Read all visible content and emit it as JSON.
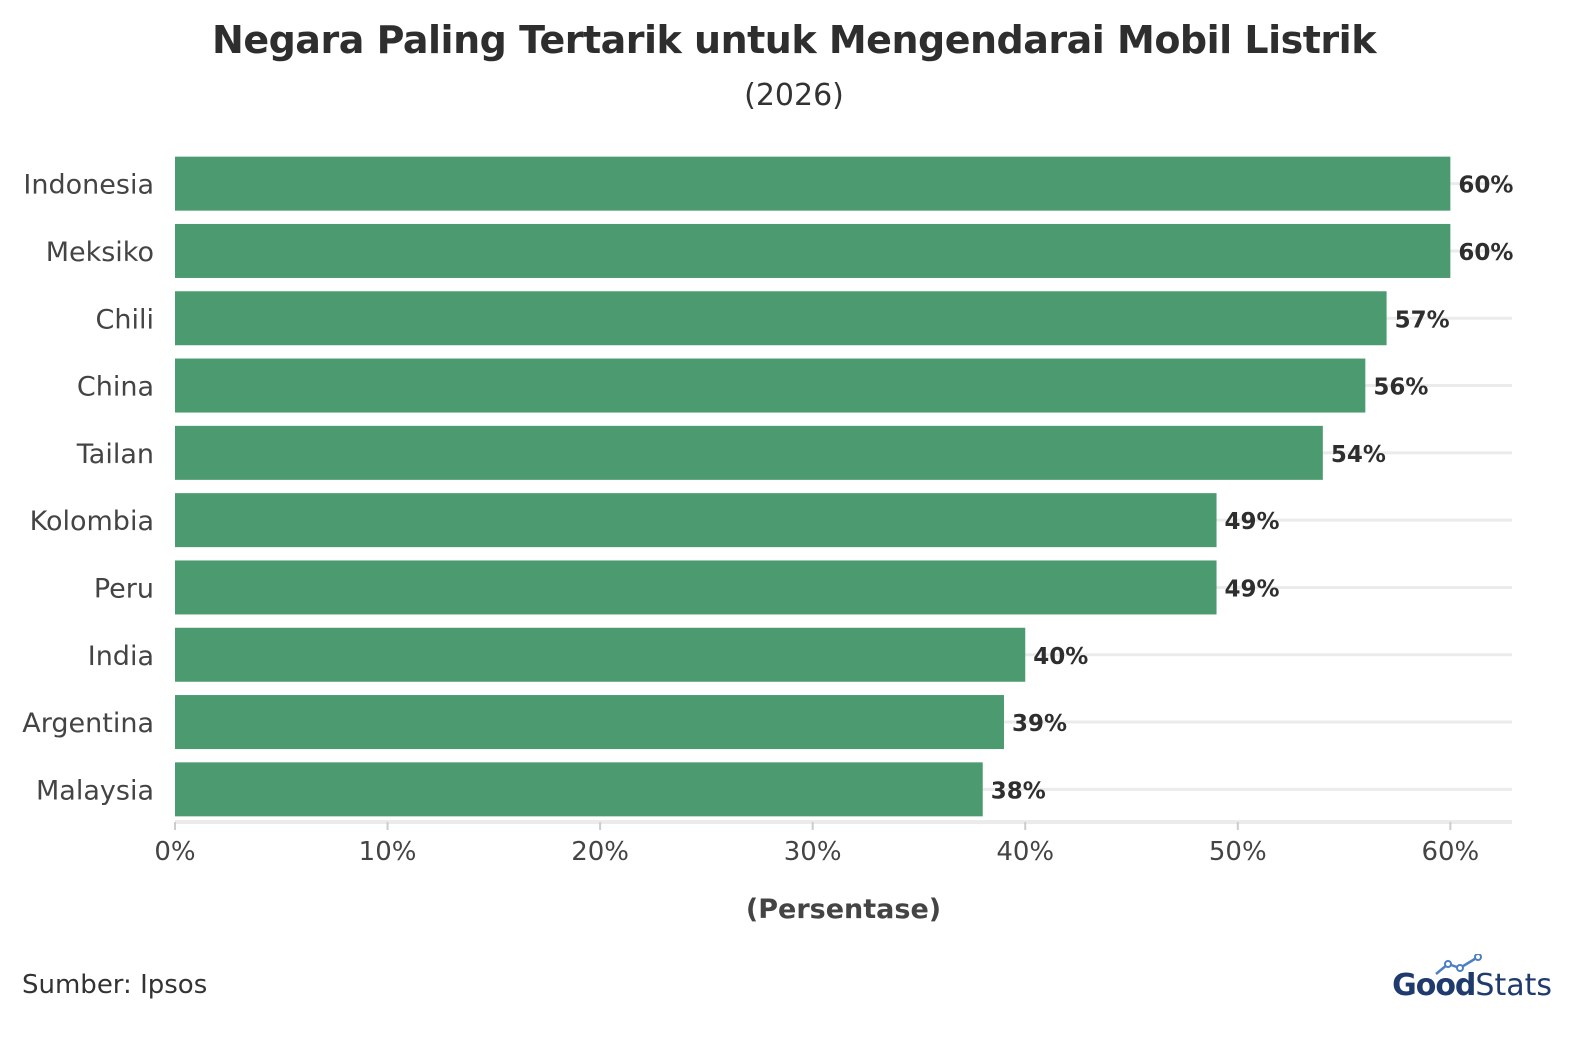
{
  "chart_data": {
    "type": "bar",
    "orientation": "horizontal",
    "title": "Negara Paling Tertarik untuk Mengendarai Mobil Listrik",
    "subtitle": "(2026)",
    "xlabel": "(Persentase)",
    "ylabel": "",
    "categories": [
      "Indonesia",
      "Meksiko",
      "Chili",
      "China",
      "Tailan",
      "Kolombia",
      "Peru",
      "India",
      "Argentina",
      "Malaysia"
    ],
    "values": [
      60,
      60,
      57,
      56,
      54,
      49,
      49,
      40,
      39,
      38
    ],
    "value_labels": [
      "60%",
      "60%",
      "57%",
      "56%",
      "54%",
      "49%",
      "49%",
      "40%",
      "39%",
      "38%"
    ],
    "xlim": [
      0,
      60
    ],
    "xticks": [
      0,
      10,
      20,
      30,
      40,
      50,
      60
    ],
    "xtick_labels": [
      "0%",
      "10%",
      "20%",
      "30%",
      "40%",
      "50%",
      "60%"
    ],
    "bar_color": "#4c9a6f",
    "grid": true
  },
  "footer": {
    "source": "Sumber: Ipsos",
    "logo_good": "Good",
    "logo_stats": "Stats"
  }
}
